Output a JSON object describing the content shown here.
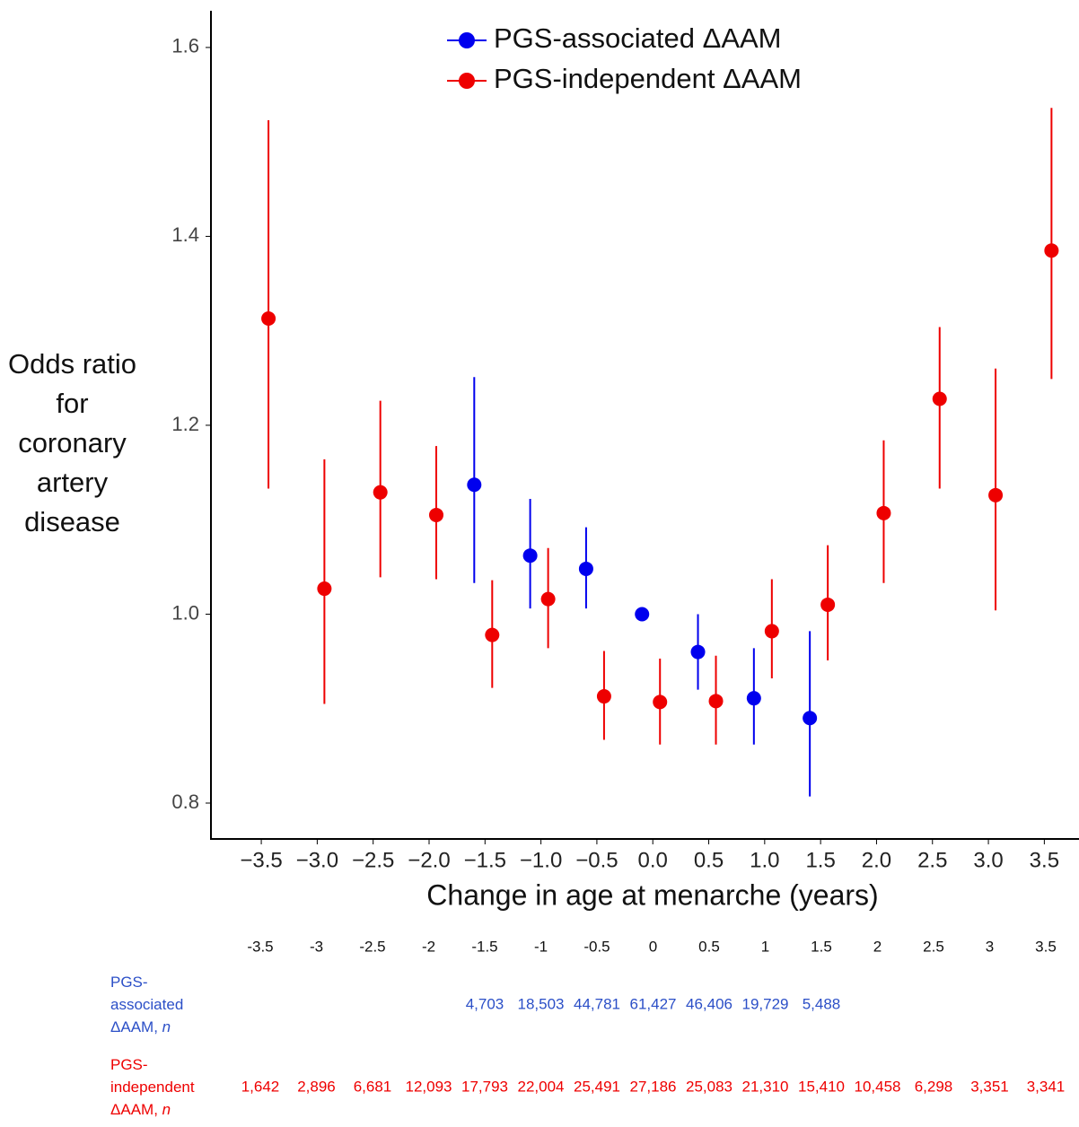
{
  "chart_data": {
    "type": "errorbar",
    "xlabel": "Change in age at menarche (years)",
    "ylabel": "Odds ratio for coronary artery disease",
    "xlim": [
      -3.95,
      3.81
    ],
    "xticks": [
      {
        "value": -3.5,
        "label": "−3.5"
      },
      {
        "value": -3,
        "label": "−3.0"
      },
      {
        "value": -2.5,
        "label": "−2.5"
      },
      {
        "value": -2,
        "label": "−2.0"
      },
      {
        "value": -1.5,
        "label": "−1.5"
      },
      {
        "value": -1,
        "label": "−1.0"
      },
      {
        "value": -0.5,
        "label": "−0.5"
      },
      {
        "value": 0,
        "label": "0.0"
      },
      0.5,
      {
        "value": 1,
        "label": "1.0"
      },
      1.5,
      {
        "value": 2,
        "label": "2.0"
      },
      2.5,
      {
        "value": 3,
        "label": "3.0"
      },
      3.5
    ],
    "ylim": [
      0.762,
      1.636
    ],
    "yticks": [
      0.8,
      {
        "value": 1,
        "label": "1.0"
      },
      1.2,
      1.4,
      1.6
    ],
    "grid": false,
    "legend": "top",
    "series": [
      {
        "name": "PGS-associated ΔAAM",
        "color": "#0000ee",
        "x": [
          -1.5,
          -1,
          -0.5,
          0,
          0.5,
          1,
          1.5
        ],
        "values": [
          1.137,
          1.062,
          1.048,
          1.0,
          0.96,
          0.911,
          0.89
        ],
        "lower": [
          1.033,
          1.006,
          1.006,
          1.0,
          0.92,
          0.862,
          0.807
        ],
        "upper": [
          1.251,
          1.122,
          1.092,
          1.0,
          1.0,
          0.964,
          0.982
        ]
      },
      {
        "name": "PGS-independent ΔAAM",
        "color": "#ee0000",
        "x": [
          -3.5,
          -3,
          -2.5,
          -2,
          -1.5,
          -1,
          -0.5,
          0,
          0.5,
          1,
          1.5,
          2,
          2.5,
          3,
          3.5
        ],
        "values": [
          1.313,
          1.027,
          1.129,
          1.105,
          0.978,
          1.016,
          0.913,
          0.907,
          0.908,
          0.982,
          1.01,
          1.107,
          1.228,
          1.126,
          1.385
        ],
        "lower": [
          1.133,
          0.905,
          1.039,
          1.037,
          0.922,
          0.964,
          0.867,
          0.862,
          0.862,
          0.932,
          0.951,
          1.033,
          1.133,
          1.004,
          1.249
        ],
        "upper": [
          1.523,
          1.164,
          1.226,
          1.178,
          1.036,
          1.07,
          0.961,
          0.953,
          0.956,
          1.037,
          1.073,
          1.184,
          1.304,
          1.26,
          1.536
        ]
      }
    ]
  },
  "table": {
    "columns": [
      -3.5,
      -3,
      -2.5,
      -2,
      -1.5,
      -1,
      -0.5,
      0,
      0.5,
      1,
      1.5,
      2,
      2.5,
      3,
      3.5
    ],
    "rows": [
      {
        "label": "PGS-associated ΔAAM,",
        "unit": "n",
        "color": "#2b4fc7",
        "counts": [
          null,
          null,
          null,
          null,
          "4,703",
          "18,503",
          "44,781",
          "61,427",
          "46,406",
          "19,729",
          "5,488",
          null,
          null,
          null,
          null
        ]
      },
      {
        "label": "PGS-independent ΔAAM,",
        "unit": "n",
        "color": "#ee0000",
        "counts": [
          "1,642",
          "2,896",
          "6,681",
          "12,093",
          "17,793",
          "22,004",
          "25,491",
          "27,186",
          "25,083",
          "21,310",
          "15,410",
          "10,458",
          "6,298",
          "3,351",
          "3,341"
        ]
      }
    ]
  }
}
